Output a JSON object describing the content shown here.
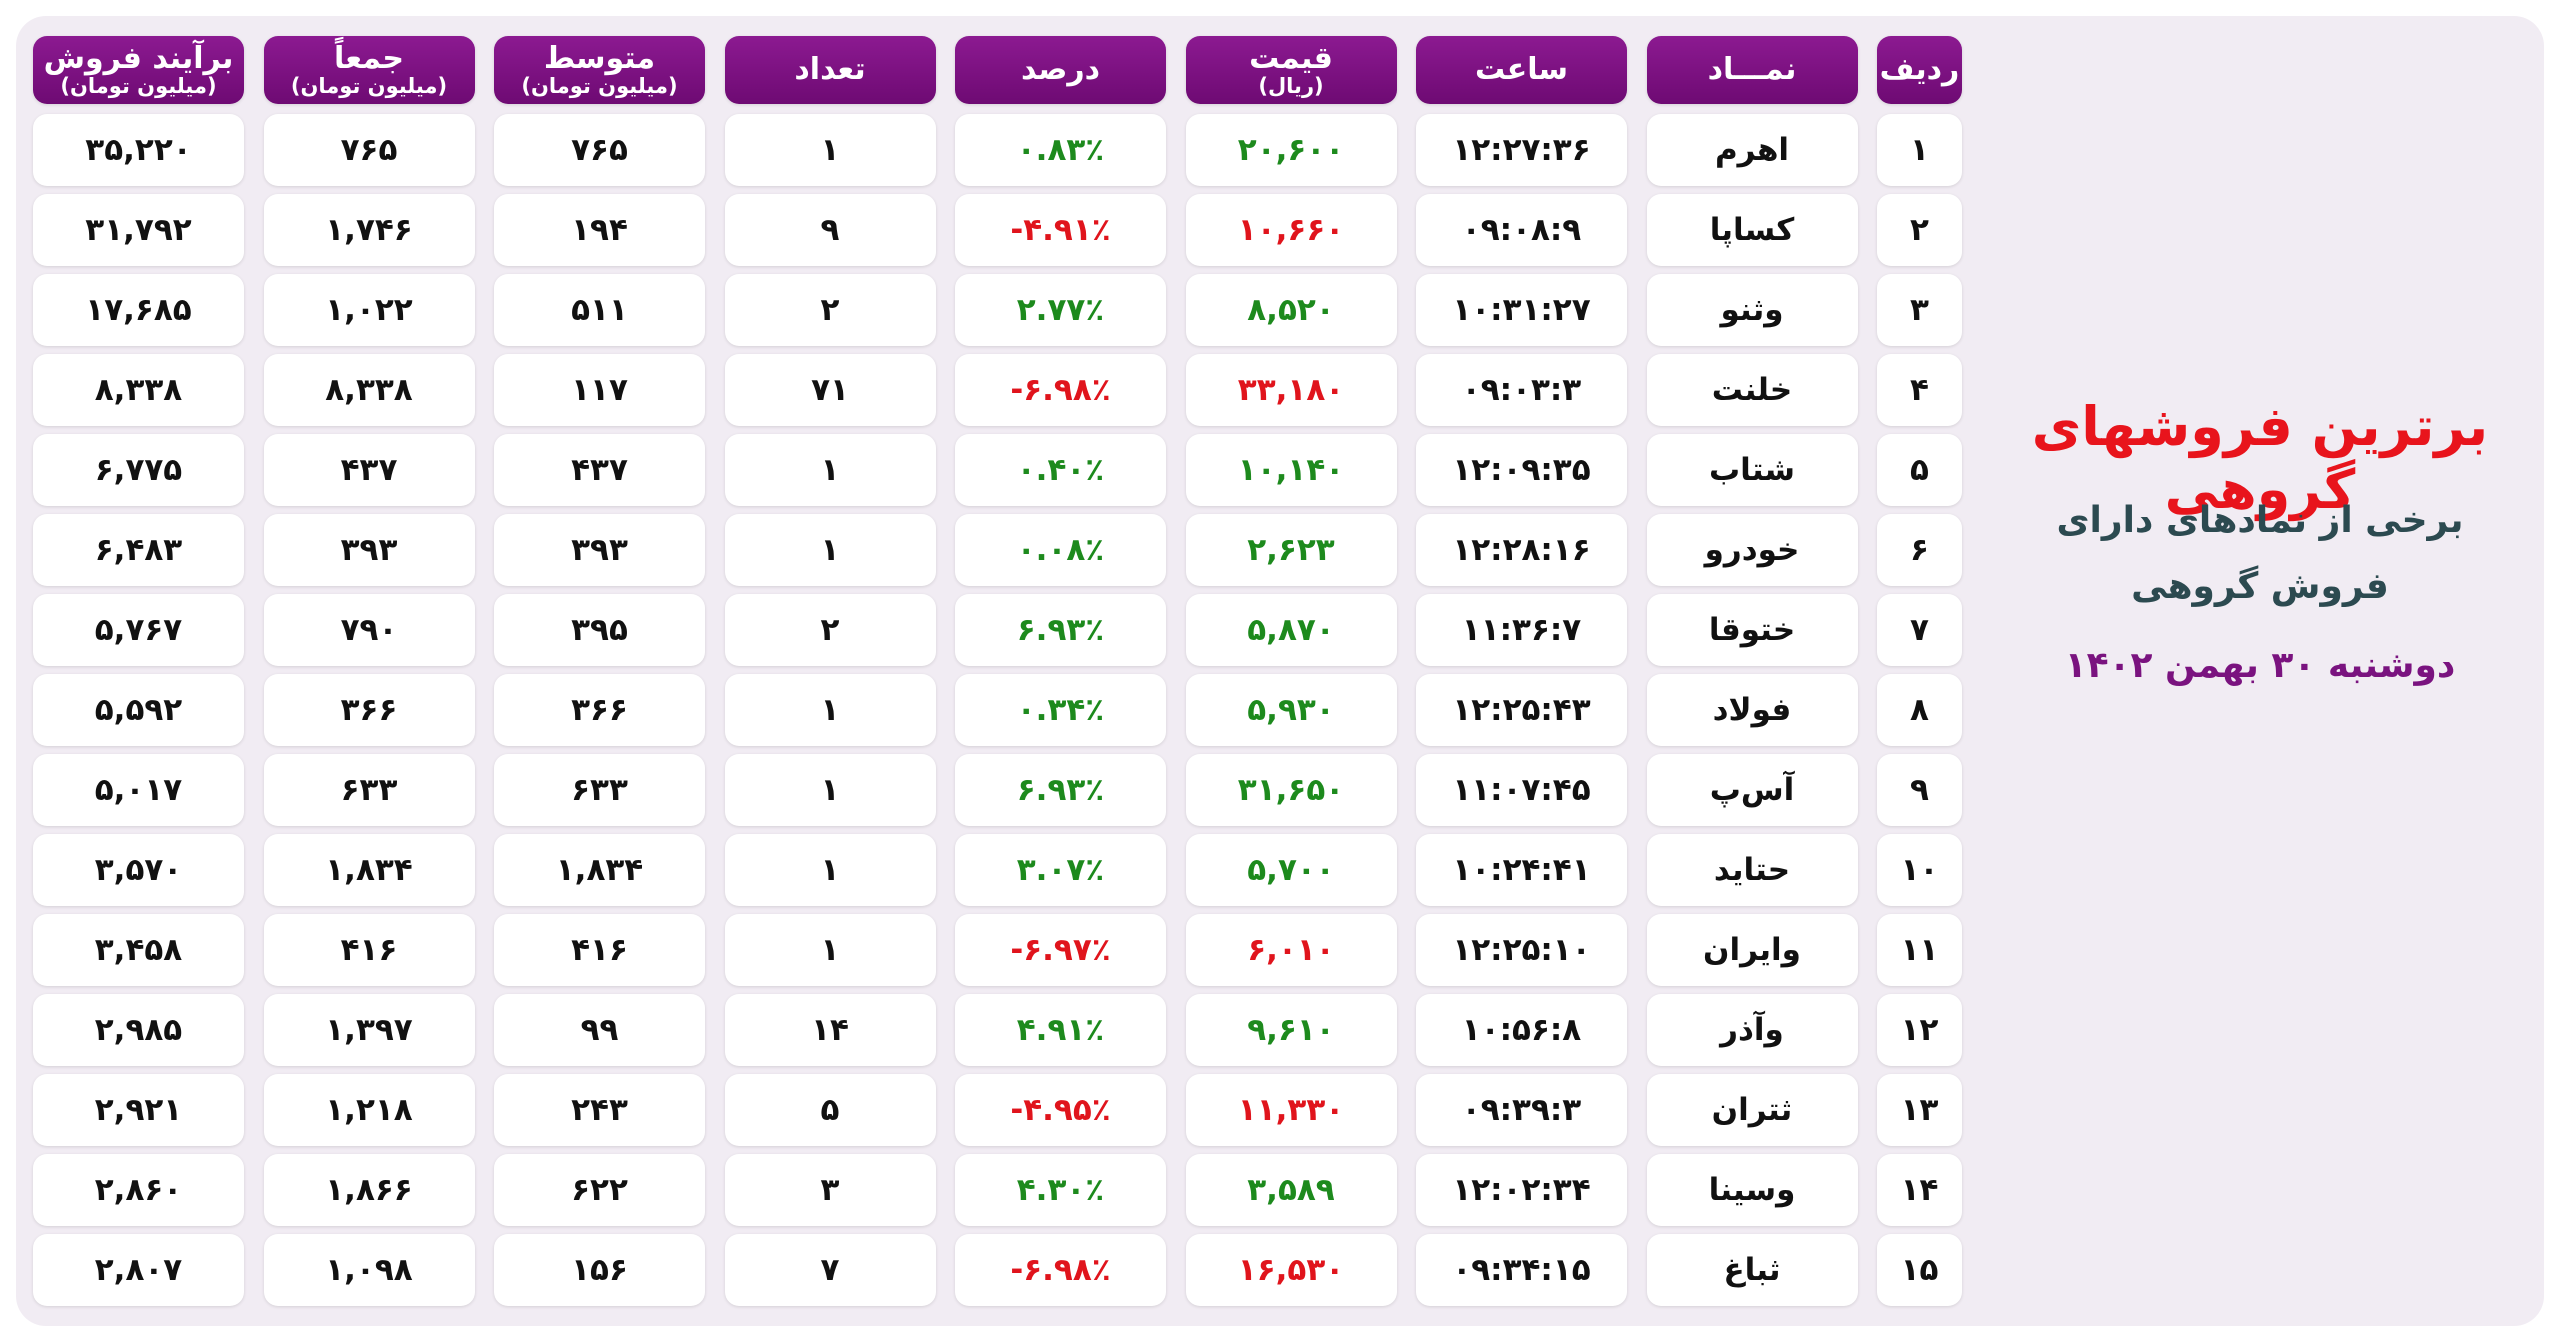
{
  "header": {
    "title": "برترین فروشهای گروهی",
    "subtitle_lines": [
      "برخی از نمادهای دارای",
      "فروش گروهی"
    ],
    "date": "دوشنبه ۳۰ بهمن ۱۴۰۲"
  },
  "table": {
    "columns": [
      {
        "title": "ردیف"
      },
      {
        "title": "نمـــاد"
      },
      {
        "title": "ساعت"
      },
      {
        "title": "قیمت",
        "unit": "(ریال)"
      },
      {
        "title": "درصد"
      },
      {
        "title": "تعداد"
      },
      {
        "title": "متوسط",
        "unit": "(میلیون تومان)"
      },
      {
        "title": "جمعاً",
        "unit": "(میلیون تومان)"
      },
      {
        "title": "برآیند فروش",
        "unit": "(میلیون تومان)"
      }
    ],
    "rows": [
      [
        "۱",
        "اهرم",
        "۱۲:۲۷:۳۶",
        "۲۰,۶۰۰",
        "۰.۸۳٪",
        "۱",
        "۷۶۵",
        "۷۶۵",
        "۳۵,۲۲۰"
      ],
      [
        "۲",
        "کساپا",
        "۰۹:۰۸:۹",
        "۱۰,۶۶۰",
        "-۴.۹۱٪",
        "۹",
        "۱۹۴",
        "۱,۷۴۶",
        "۳۱,۷۹۲"
      ],
      [
        "۳",
        "وثنو",
        "۱۰:۳۱:۲۷",
        "۸,۵۲۰",
        "۲.۷۷٪",
        "۲",
        "۵۱۱",
        "۱,۰۲۲",
        "۱۷,۶۸۵"
      ],
      [
        "۴",
        "خلنت",
        "۰۹:۰۳:۳",
        "۳۳,۱۸۰",
        "-۶.۹۸٪",
        "۷۱",
        "۱۱۷",
        "۸,۳۳۸",
        "۸,۳۳۸"
      ],
      [
        "۵",
        "شتاب",
        "۱۲:۰۹:۳۵",
        "۱۰,۱۴۰",
        "۰.۴۰٪",
        "۱",
        "۴۳۷",
        "۴۳۷",
        "۶,۷۷۵"
      ],
      [
        "۶",
        "خودرو",
        "۱۲:۲۸:۱۶",
        "۲,۶۲۳",
        "۰.۰۸٪",
        "۱",
        "۳۹۳",
        "۳۹۳",
        "۶,۴۸۳"
      ],
      [
        "۷",
        "ختوقا",
        "۱۱:۳۶:۷",
        "۵,۸۷۰",
        "۶.۹۳٪",
        "۲",
        "۳۹۵",
        "۷۹۰",
        "۵,۷۶۷"
      ],
      [
        "۸",
        "فولاد",
        "۱۲:۲۵:۴۳",
        "۵,۹۳۰",
        "۰.۳۴٪",
        "۱",
        "۳۶۶",
        "۳۶۶",
        "۵,۵۹۲"
      ],
      [
        "۹",
        "آ‌س‌پ",
        "۱۱:۰۷:۴۵",
        "۳۱,۶۵۰",
        "۶.۹۳٪",
        "۱",
        "۶۳۳",
        "۶۳۳",
        "۵,۰۱۷"
      ],
      [
        "۱۰",
        "حتاید",
        "۱۰:۲۴:۴۱",
        "۵,۷۰۰",
        "۳.۰۷٪",
        "۱",
        "۱,۸۳۴",
        "۱,۸۳۴",
        "۳,۵۷۰"
      ],
      [
        "۱۱",
        "وایران",
        "۱۲:۲۵:۱۰",
        "۶,۰۱۰",
        "-۶.۹۷٪",
        "۱",
        "۴۱۶",
        "۴۱۶",
        "۳,۴۵۸"
      ],
      [
        "۱۲",
        "وآذر",
        "۱۰:۵۶:۸",
        "۹,۶۱۰",
        "۴.۹۱٪",
        "۱۴",
        "۹۹",
        "۱,۳۹۷",
        "۲,۹۸۵"
      ],
      [
        "۱۳",
        "ثتران",
        "۰۹:۳۹:۳",
        "۱۱,۳۳۰",
        "-۴.۹۵٪",
        "۵",
        "۲۴۳",
        "۱,۲۱۸",
        "۲,۹۲۱"
      ],
      [
        "۱۴",
        "وسینا",
        "۱۲:۰۲:۳۴",
        "۳,۵۸۹",
        "۴.۳۰٪",
        "۳",
        "۶۲۲",
        "۱,۸۶۶",
        "۲,۸۶۰"
      ],
      [
        "۱۵",
        "ثباغ",
        "۰۹:۳۴:۱۵",
        "۱۶,۵۳۰",
        "-۶.۹۸٪",
        "۷",
        "۱۵۶",
        "۱,۰۹۸",
        "۲,۸۰۷"
      ]
    ]
  }
}
